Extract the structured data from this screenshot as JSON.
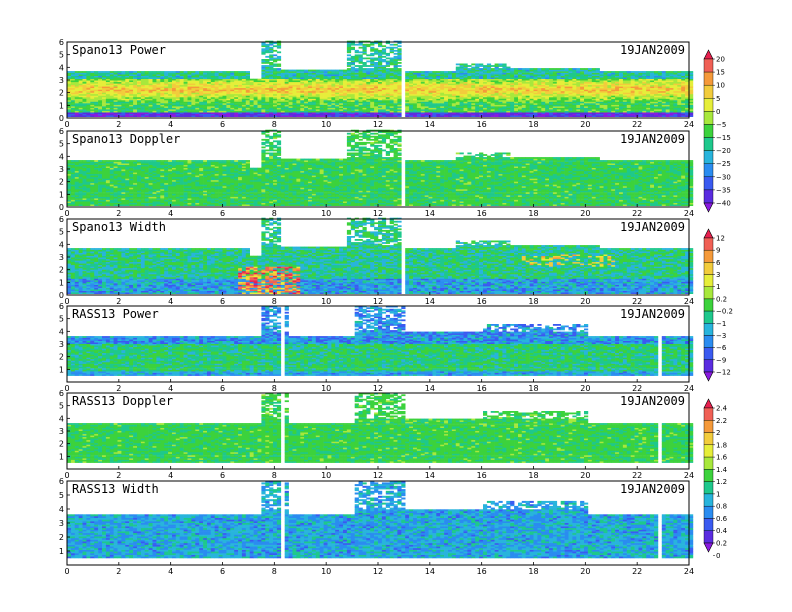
{
  "chart_data": [
    {
      "type": "heatmap",
      "title": "Spano13 Power",
      "date": "19JAN2009",
      "xlim": [
        0,
        24
      ],
      "ylim": [
        0,
        6
      ],
      "xticks": [
        "0",
        "2",
        "4",
        "6",
        "8",
        "10",
        "12",
        "14",
        "16",
        "18",
        "20",
        "22",
        "24"
      ],
      "yticks": [
        "0",
        "1",
        "2",
        "3",
        "4",
        "5",
        "6"
      ],
      "colorbar": "power",
      "description": "Strong signal band ~1.5-3 km peaking near 2-3 km (yellow/orange), coverage to ~3.7 km; gaps 7-7.5 and 9-10.8 h above ~4 km; extra gates 7.5-8.2 h and 10.8-12.8 h up to 6 km",
      "top_km_hourly": [
        3.7,
        3.7,
        3.7,
        3.7,
        3.7,
        3.7,
        3.7,
        3.7,
        6,
        3.8,
        3.8,
        6,
        6,
        3.6,
        3.6,
        3.6,
        4.2,
        4.2,
        4.0,
        4.0,
        4.0,
        3.7,
        3.6,
        3.6
      ]
    },
    {
      "type": "heatmap",
      "title": "Spano13 Doppler",
      "date": "19JAN2009",
      "xlim": [
        0,
        24
      ],
      "ylim": [
        0,
        6
      ],
      "xticks": [
        "0",
        "2",
        "4",
        "6",
        "8",
        "10",
        "12",
        "14",
        "16",
        "18",
        "20",
        "22",
        "24"
      ],
      "yticks": [
        "0",
        "1",
        "2",
        "3",
        "4",
        "5",
        "6"
      ],
      "colorbar": "power",
      "description": "Mostly green (near zero) Doppler from 0.3-4 km all day"
    },
    {
      "type": "heatmap",
      "title": "Spano13 Width",
      "date": "19JAN2009",
      "xlim": [
        0,
        24
      ],
      "ylim": [
        0,
        6
      ],
      "xticks": [
        "0",
        "2",
        "4",
        "6",
        "8",
        "10",
        "12",
        "14",
        "16",
        "18",
        "20",
        "22",
        "24"
      ],
      "yticks": [
        "0",
        "1",
        "2",
        "3",
        "4",
        "5",
        "6"
      ],
      "colorbar": "width",
      "description": "Green/blue widths, high values (yellow-red) between 6.5-9 h below 2 km"
    },
    {
      "type": "heatmap",
      "title": "RASS13 Power",
      "date": "19JAN2009",
      "xlim": [
        0,
        24
      ],
      "ylim": [
        0,
        6
      ],
      "xticks": [
        "0",
        "2",
        "4",
        "6",
        "8",
        "10",
        "12",
        "14",
        "16",
        "18",
        "20",
        "22",
        "24"
      ],
      "yticks": [
        "1",
        "2",
        "3",
        "4",
        "5",
        "6"
      ],
      "colorbar": "width",
      "description": "Layered green/cyan power from 0.5-3.5 km, sparse returns to 6 km near 7.5-8.5 h and 11-13 h"
    },
    {
      "type": "heatmap",
      "title": "RASS13 Doppler",
      "date": "19JAN2009",
      "xlim": [
        0,
        24
      ],
      "ylim": [
        0,
        6
      ],
      "xticks": [
        "0",
        "2",
        "4",
        "6",
        "8",
        "10",
        "12",
        "14",
        "16",
        "18",
        "20",
        "22",
        "24"
      ],
      "yticks": [
        "1",
        "2",
        "3",
        "4",
        "5",
        "6"
      ],
      "colorbar": "rass",
      "description": "Uniform green Doppler 0.5-3.5 km"
    },
    {
      "type": "heatmap",
      "title": "RASS13 Width",
      "date": "19JAN2009",
      "xlim": [
        0,
        24
      ],
      "ylim": [
        0,
        6
      ],
      "xticks": [
        "0",
        "2",
        "4",
        "6",
        "8",
        "10",
        "12",
        "14",
        "16",
        "18",
        "20",
        "22",
        "24"
      ],
      "yticks": [
        "1",
        "2",
        "3",
        "4",
        "5",
        "6"
      ],
      "colorbar": "rass",
      "description": "Cyan/blue widths 0.5-3.5 km with green speckle"
    }
  ],
  "colorbars": {
    "power": {
      "labels": [
        "20",
        "15",
        "10",
        "5",
        "0",
        "−5",
        "−15",
        "−20",
        "−25",
        "−30",
        "−35",
        "−40"
      ],
      "colors": [
        "#e8204f",
        "#f06055",
        "#f59a3a",
        "#f2cc3c",
        "#e6ee3a",
        "#a8e83c",
        "#3cd23c",
        "#1ec88c",
        "#28b4dc",
        "#2a8cf0",
        "#3a5af0",
        "#5a2ce0",
        "#8a1ae0"
      ]
    },
    "width": {
      "labels": [
        "12",
        "9",
        "6",
        "3",
        "1",
        "0.2",
        "−0.2",
        "−1",
        "−3",
        "−6",
        "−9",
        "−12"
      ],
      "colors": [
        "#e8204f",
        "#f06055",
        "#f59a3a",
        "#f2cc3c",
        "#e6ee3a",
        "#a8e83c",
        "#3cd23c",
        "#1ec88c",
        "#28b4dc",
        "#2a8cf0",
        "#3a5af0",
        "#5a2ce0",
        "#8a1ae0"
      ]
    },
    "rass": {
      "labels": [
        "2.4",
        "2.2",
        "2",
        "1.8",
        "1.6",
        "1.4",
        "1.2",
        "1",
        "0.8",
        "0.6",
        "0.4",
        "0.2",
        "0"
      ],
      "colors": [
        "#e8204f",
        "#f06055",
        "#f59a3a",
        "#f2cc3c",
        "#e6ee3a",
        "#a8e83c",
        "#3cd23c",
        "#1ec88c",
        "#28b4dc",
        "#2a8cf0",
        "#3a5af0",
        "#5a2ce0",
        "#8a1ae0"
      ]
    }
  }
}
